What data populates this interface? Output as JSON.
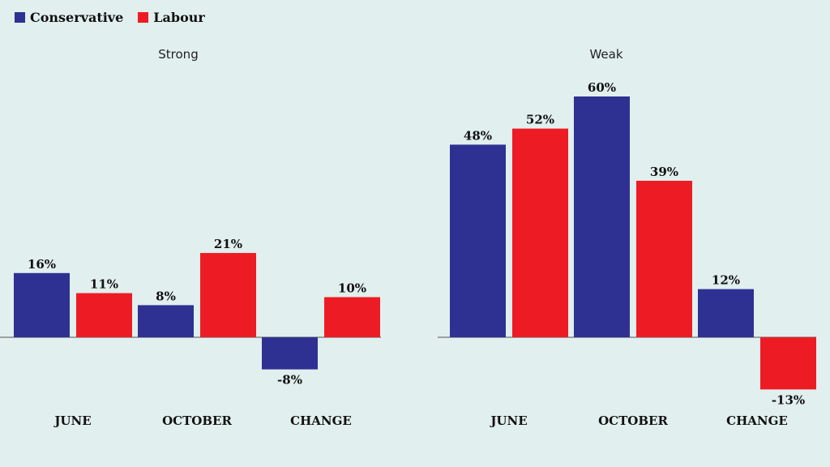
{
  "legend": {
    "items": [
      {
        "name": "Conservative",
        "color": "#2e3192"
      },
      {
        "name": "Labour",
        "color": "#ed1c24"
      }
    ]
  },
  "chart_data": {
    "type": "bar",
    "series_names": [
      "Conservative",
      "Labour"
    ],
    "colors": {
      "Conservative": "#2e3192",
      "Labour": "#ed1c24"
    },
    "panels": [
      {
        "title": "Strong",
        "categories": [
          "JUNE",
          "OCTOBER",
          "CHANGE"
        ],
        "series": [
          {
            "name": "Conservative",
            "values": [
              16,
              8,
              -8
            ],
            "labels": [
              "16%",
              "8%",
              "-8%"
            ]
          },
          {
            "name": "Labour",
            "values": [
              11,
              21,
              10
            ],
            "labels": [
              "11%",
              "21%",
              "10%"
            ]
          }
        ]
      },
      {
        "title": "Weak",
        "categories": [
          "JUNE",
          "OCTOBER",
          "CHANGE"
        ],
        "series": [
          {
            "name": "Conservative",
            "values": [
              48,
              60,
              12
            ],
            "labels": [
              "48%",
              "60%",
              "12%"
            ]
          },
          {
            "name": "Labour",
            "values": [
              52,
              39,
              -13
            ],
            "labels": [
              "52%",
              "39%",
              "-13%"
            ]
          }
        ]
      }
    ],
    "grid": false,
    "legend_position": "top-left"
  }
}
